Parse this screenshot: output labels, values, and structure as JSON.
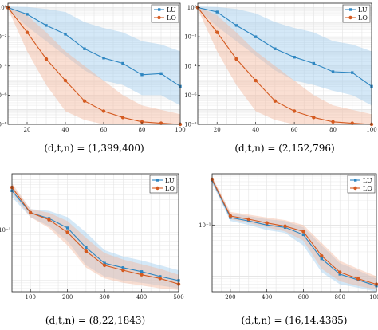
{
  "colors": {
    "lu": "#2e86c1",
    "lo": "#d45a20",
    "lu_band": "#9fcdee",
    "lo_band": "#f4b89e"
  },
  "chart_data": [
    {
      "type": "line",
      "caption": "(d,t,n) = (1,399,400)",
      "yscale": "log",
      "ylim": [
        1e-08,
        2
      ],
      "xlim": [
        10,
        100
      ],
      "xticks": [
        20,
        40,
        60,
        80,
        100
      ],
      "yticks": [
        {
          "v": 1,
          "label": "10⁰"
        },
        {
          "v": 0.01,
          "label": "10⁻²"
        },
        {
          "v": 0.0001,
          "label": "10⁻⁴"
        },
        {
          "v": 1e-06,
          "label": "10⁻⁶"
        },
        {
          "v": 1e-08,
          "label": "10⁻⁸"
        }
      ],
      "grid": true,
      "legend_position": "top-right",
      "x": [
        10,
        20,
        30,
        40,
        50,
        60,
        70,
        80,
        90,
        100
      ],
      "series": [
        {
          "name": "LU",
          "values": [
            1.0,
            0.35,
            0.06,
            0.015,
            0.0015,
            0.00035,
            0.00015,
            2.5e-05,
            3e-05,
            4e-06
          ],
          "band_low": [
            0.8,
            0.05,
            0.005,
            0.0005,
            5e-05,
            1e-05,
            5e-06,
            1e-06,
            1e-06,
            2e-07
          ],
          "band_high": [
            1.2,
            1.1,
            0.8,
            0.5,
            0.1,
            0.04,
            0.02,
            0.005,
            0.003,
            0.001
          ]
        },
        {
          "name": "LO",
          "values": [
            1.0,
            0.02,
            0.0003,
            1e-05,
            4e-07,
            8e-08,
            3e-08,
            1.5e-08,
            1.2e-08,
            1e-08
          ],
          "band_low": [
            0.8,
            0.001,
            5e-06,
            8e-08,
            2e-08,
            1e-08,
            1e-08,
            1e-08,
            1e-08,
            1e-08
          ],
          "band_high": [
            1.2,
            0.3,
            0.02,
            0.001,
            0.0001,
            1e-05,
            1e-06,
            2e-07,
            1e-07,
            5e-08
          ]
        }
      ]
    },
    {
      "type": "line",
      "caption": "(d,t,n) = (2,152,796)",
      "yscale": "log",
      "ylim": [
        1e-08,
        2
      ],
      "xlim": [
        10,
        100
      ],
      "xticks": [
        20,
        40,
        60,
        80,
        100
      ],
      "yticks": [
        {
          "v": 1,
          "label": "10⁰"
        },
        {
          "v": 0.01,
          "label": "10⁻²"
        },
        {
          "v": 0.0001,
          "label": "10⁻⁴"
        },
        {
          "v": 1e-06,
          "label": "10⁻⁶"
        },
        {
          "v": 1e-08,
          "label": "10⁻⁸"
        }
      ],
      "grid": true,
      "legend_position": "top-right",
      "x": [
        10,
        20,
        30,
        40,
        50,
        60,
        70,
        80,
        90,
        100
      ],
      "series": [
        {
          "name": "LU",
          "values": [
            1.0,
            0.5,
            0.06,
            0.01,
            0.0015,
            0.0004,
            0.00015,
            4e-05,
            3.5e-05,
            4e-06
          ],
          "band_low": [
            0.8,
            0.05,
            0.005,
            0.0005,
            5e-05,
            1e-05,
            5e-06,
            2e-06,
            1e-06,
            2e-07
          ],
          "band_high": [
            1.2,
            1.1,
            0.8,
            0.4,
            0.1,
            0.04,
            0.02,
            0.005,
            0.003,
            0.001
          ]
        },
        {
          "name": "LO",
          "values": [
            1.0,
            0.02,
            0.0003,
            1e-05,
            4e-07,
            8e-08,
            3e-08,
            1.5e-08,
            1.2e-08,
            1e-08
          ],
          "band_low": [
            0.8,
            0.001,
            5e-06,
            8e-08,
            2e-08,
            1e-08,
            1e-08,
            1e-08,
            1e-08,
            1e-08
          ],
          "band_high": [
            1.2,
            0.3,
            0.02,
            0.001,
            0.0001,
            1e-05,
            1e-06,
            2e-07,
            1e-07,
            5e-08
          ]
        }
      ]
    },
    {
      "type": "line",
      "caption": "(d,t,n) = (8,22,1843)",
      "yscale": "log",
      "ylim": [
        0.006,
        1.3
      ],
      "xlim": [
        50,
        500
      ],
      "xticks": [
        100,
        200,
        300,
        400,
        500
      ],
      "yticks": [
        {
          "v": 0.1,
          "label": "10⁻¹"
        }
      ],
      "grid": true,
      "legend_position": "top-right",
      "x": [
        50,
        100,
        150,
        200,
        250,
        300,
        350,
        400,
        450,
        500
      ],
      "series": [
        {
          "name": "LU",
          "values": [
            0.6,
            0.22,
            0.17,
            0.11,
            0.045,
            0.022,
            0.018,
            0.015,
            0.012,
            0.01
          ],
          "band_low": [
            0.45,
            0.18,
            0.12,
            0.06,
            0.02,
            0.012,
            0.01,
            0.009,
            0.008,
            0.007
          ],
          "band_high": [
            0.75,
            0.26,
            0.24,
            0.18,
            0.09,
            0.04,
            0.03,
            0.025,
            0.02,
            0.016
          ]
        },
        {
          "name": "LO",
          "values": [
            0.7,
            0.22,
            0.16,
            0.09,
            0.038,
            0.02,
            0.016,
            0.013,
            0.011,
            0.0085
          ],
          "band_low": [
            0.55,
            0.18,
            0.11,
            0.05,
            0.018,
            0.011,
            0.009,
            0.008,
            0.007,
            0.0065
          ],
          "band_high": [
            0.85,
            0.26,
            0.22,
            0.15,
            0.07,
            0.035,
            0.026,
            0.021,
            0.017,
            0.013
          ]
        }
      ]
    },
    {
      "type": "line",
      "caption": "(d,t,n) = (16,14,4385)",
      "yscale": "log",
      "ylim": [
        0.005,
        1.0
      ],
      "xlim": [
        100,
        1000
      ],
      "xticks": [
        200,
        400,
        600,
        800,
        1000
      ],
      "yticks": [
        {
          "v": 0.1,
          "label": "10⁻¹"
        }
      ],
      "grid": true,
      "legend_position": "top-right",
      "x": [
        100,
        200,
        300,
        400,
        500,
        600,
        700,
        800,
        900,
        1000
      ],
      "series": [
        {
          "name": "LU",
          "values": [
            0.75,
            0.14,
            0.12,
            0.1,
            0.09,
            0.065,
            0.022,
            0.011,
            0.0085,
            0.0065
          ],
          "band_low": [
            0.65,
            0.12,
            0.1,
            0.08,
            0.07,
            0.04,
            0.012,
            0.007,
            0.006,
            0.005
          ],
          "band_high": [
            0.85,
            0.17,
            0.15,
            0.13,
            0.12,
            0.09,
            0.04,
            0.018,
            0.013,
            0.009
          ]
        },
        {
          "name": "LO",
          "values": [
            0.78,
            0.15,
            0.13,
            0.11,
            0.095,
            0.075,
            0.025,
            0.012,
            0.009,
            0.007
          ],
          "band_low": [
            0.68,
            0.13,
            0.11,
            0.09,
            0.075,
            0.05,
            0.014,
            0.008,
            0.0065,
            0.0055
          ],
          "band_high": [
            0.88,
            0.18,
            0.16,
            0.14,
            0.125,
            0.1,
            0.045,
            0.02,
            0.014,
            0.01
          ]
        }
      ]
    }
  ]
}
